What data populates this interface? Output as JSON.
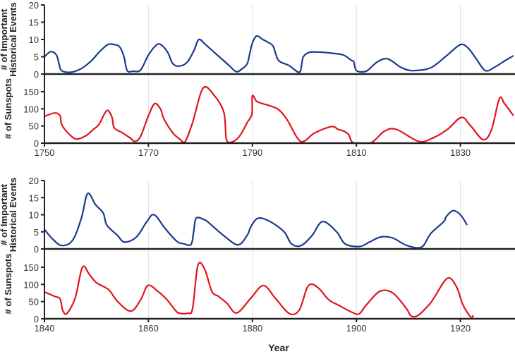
{
  "chart_data": [
    {
      "type": "line",
      "panel": "top-events",
      "ylabel": [
        "# of Important",
        "Historical Events"
      ],
      "ylim": [
        0,
        20
      ],
      "yticks": [
        "0",
        "5",
        "10",
        "15",
        "20"
      ],
      "xlim": [
        1750,
        1840.5
      ],
      "color": "#1a3a8f",
      "x": [
        1750,
        1751.2,
        1752.3,
        1752.8,
        1753.3,
        1755,
        1757,
        1759,
        1760.5,
        1762.2,
        1763.5,
        1764.5,
        1765.3,
        1765.9,
        1767,
        1768.5,
        1770,
        1771.7,
        1772.8,
        1773.8,
        1774.7,
        1776,
        1777.5,
        1778.8,
        1779.7,
        1781,
        1782.5,
        1784,
        1785.5,
        1786.9,
        1788,
        1789,
        1789.5,
        1790,
        1790.8,
        1792,
        1793,
        1794,
        1795,
        1797,
        1799,
        1799.5,
        1799.8,
        1801,
        1803.5,
        1805.5,
        1807.5,
        1809,
        1809.5,
        1810,
        1811.6,
        1812.5,
        1814,
        1815.7,
        1817,
        1818.5,
        1820.5,
        1823.7,
        1825.5,
        1827.5,
        1830,
        1831.5,
        1833,
        1834.8,
        1836.6,
        1838.5,
        1840.2
      ],
      "y": [
        5,
        6.5,
        5.5,
        3,
        1,
        0.5,
        1.5,
        3.8,
        6.3,
        8.5,
        8.5,
        7.8,
        5,
        1,
        0.8,
        1.2,
        5.5,
        8.6,
        8,
        6,
        3,
        2.3,
        3.5,
        7,
        10,
        8.5,
        6.5,
        4.5,
        2.5,
        0.7,
        1.5,
        3,
        6,
        9,
        11,
        10,
        9.2,
        8,
        4,
        2.5,
        0.5,
        3,
        5,
        6.3,
        6.3,
        6,
        5.5,
        4,
        3.5,
        1,
        0.7,
        1.5,
        3.5,
        4.5,
        3.6,
        2,
        1,
        1.5,
        3,
        5.5,
        8.5,
        7.5,
        4.5,
        1,
        2,
        3.8,
        5.3
      ]
    },
    {
      "type": "line",
      "panel": "top-sunspots",
      "ylabel": [
        "# of Sunspots"
      ],
      "ylim": [
        0,
        190
      ],
      "yticks": [
        "0",
        "50",
        "100",
        "150"
      ],
      "xlim": [
        1750,
        1840.5
      ],
      "xticks": [
        "1750",
        "1770",
        "1790",
        "1810",
        "1830"
      ],
      "color": "#e0141e",
      "x": [
        1750,
        1752,
        1753,
        1753.3,
        1754.5,
        1756.1,
        1758,
        1759.4,
        1760.5,
        1762,
        1763,
        1763.4,
        1765,
        1766.5,
        1767.4,
        1768.5,
        1770,
        1771.2,
        1772.3,
        1773,
        1774.7,
        1776,
        1777,
        1778.5,
        1780.5,
        1782.6,
        1784.5,
        1785,
        1786,
        1787.5,
        1789,
        1789.9,
        1790,
        1790.8,
        1792,
        1794.8,
        1796.6,
        1799.3,
        1802,
        1805.2,
        1806.5,
        1807.6,
        1808.5,
        1809.5,
        1812.7,
        1815.4,
        1817.7,
        1822,
        1824.7,
        1827.5,
        1830.2,
        1832,
        1834.4,
        1836,
        1837.5,
        1838.5,
        1840.2
      ],
      "y": [
        78,
        88,
        80,
        55,
        30,
        12,
        22,
        40,
        55,
        95,
        75,
        45,
        30,
        15,
        5,
        20,
        80,
        115,
        100,
        70,
        30,
        12,
        3,
        60,
        160,
        140,
        90,
        10,
        3,
        20,
        60,
        85,
        138,
        122,
        115,
        100,
        70,
        5,
        30,
        48,
        40,
        35,
        25,
        0,
        0,
        35,
        40,
        5,
        15,
        40,
        75,
        50,
        10,
        40,
        130,
        115,
        80
      ]
    },
    {
      "type": "line",
      "panel": "bottom-events",
      "ylabel": [
        "# of Important",
        "Historical Events"
      ],
      "ylim": [
        0,
        20
      ],
      "yticks": [
        "0",
        "5",
        "10",
        "15",
        "20"
      ],
      "xlim": [
        1840,
        1930.5
      ],
      "color": "#1a3a8f",
      "x": [
        1840,
        1841.5,
        1843.3,
        1845.4,
        1847.1,
        1848.3,
        1849.8,
        1851.3,
        1852,
        1854,
        1855.4,
        1857.7,
        1859.7,
        1861.1,
        1863.2,
        1865.4,
        1866.8,
        1868.2,
        1868.7,
        1869.2,
        1870.8,
        1871.5,
        1874.4,
        1877.2,
        1879,
        1879.7,
        1881.1,
        1883.4,
        1886.1,
        1887.5,
        1889.4,
        1891.5,
        1893.5,
        1896.2,
        1897.8,
        1900.6,
        1902.5,
        1904.7,
        1907,
        1909.7,
        1912.5,
        1914.3,
        1916.8,
        1917.3,
        1918.6,
        1920,
        1921.3
      ],
      "y": [
        5.7,
        3,
        1,
        2.5,
        9,
        16.2,
        13,
        10.5,
        7,
        4,
        2,
        3.5,
        8,
        10,
        6,
        2.3,
        1.5,
        1.3,
        5,
        9,
        8.5,
        7.8,
        4,
        1.2,
        4,
        6.5,
        9,
        8,
        5,
        1.5,
        1,
        4,
        8,
        5,
        1.5,
        0.7,
        2,
        3.5,
        3.2,
        1,
        0.5,
        4.5,
        8,
        9.5,
        11.2,
        10,
        7
      ]
    },
    {
      "type": "line",
      "panel": "bottom-sunspots",
      "ylabel": [
        "# of Sunspots"
      ],
      "ylim": [
        0,
        190
      ],
      "yticks": [
        "0",
        "50",
        "100",
        "150"
      ],
      "xlim": [
        1840,
        1930.5
      ],
      "xticks": [
        "1840",
        "1860",
        "1880",
        "1900",
        "1920"
      ],
      "xlabel": "Year",
      "color": "#e0141e",
      "x": [
        1840,
        1842,
        1843,
        1843.5,
        1844.3,
        1845.9,
        1847.3,
        1848.6,
        1850,
        1852.3,
        1854.1,
        1856.6,
        1858.5,
        1859.9,
        1861.8,
        1863.6,
        1865.2,
        1866,
        1867.6,
        1868.5,
        1869.5,
        1870.8,
        1872.2,
        1873.5,
        1875.1,
        1877,
        1879.7,
        1882.1,
        1884.4,
        1887.1,
        1889,
        1890.5,
        1891.6,
        1893,
        1894.7,
        1896.5,
        1899,
        1900.5,
        1901.9,
        1904.5,
        1907,
        1909.6,
        1910.5,
        1911.9,
        1914.2,
        1915.1,
        1917.5,
        1919.2,
        1920.5,
        1922,
        1922.5
      ],
      "y": [
        78,
        65,
        58,
        25,
        15,
        60,
        150,
        130,
        105,
        85,
        50,
        22,
        55,
        97,
        80,
        55,
        24,
        16,
        16,
        30,
        155,
        145,
        80,
        65,
        45,
        17,
        60,
        97,
        60,
        15,
        25,
        90,
        100,
        85,
        55,
        40,
        20,
        14,
        40,
        80,
        75,
        30,
        8,
        10,
        45,
        65,
        118,
        95,
        40,
        5,
        10
      ]
    }
  ]
}
